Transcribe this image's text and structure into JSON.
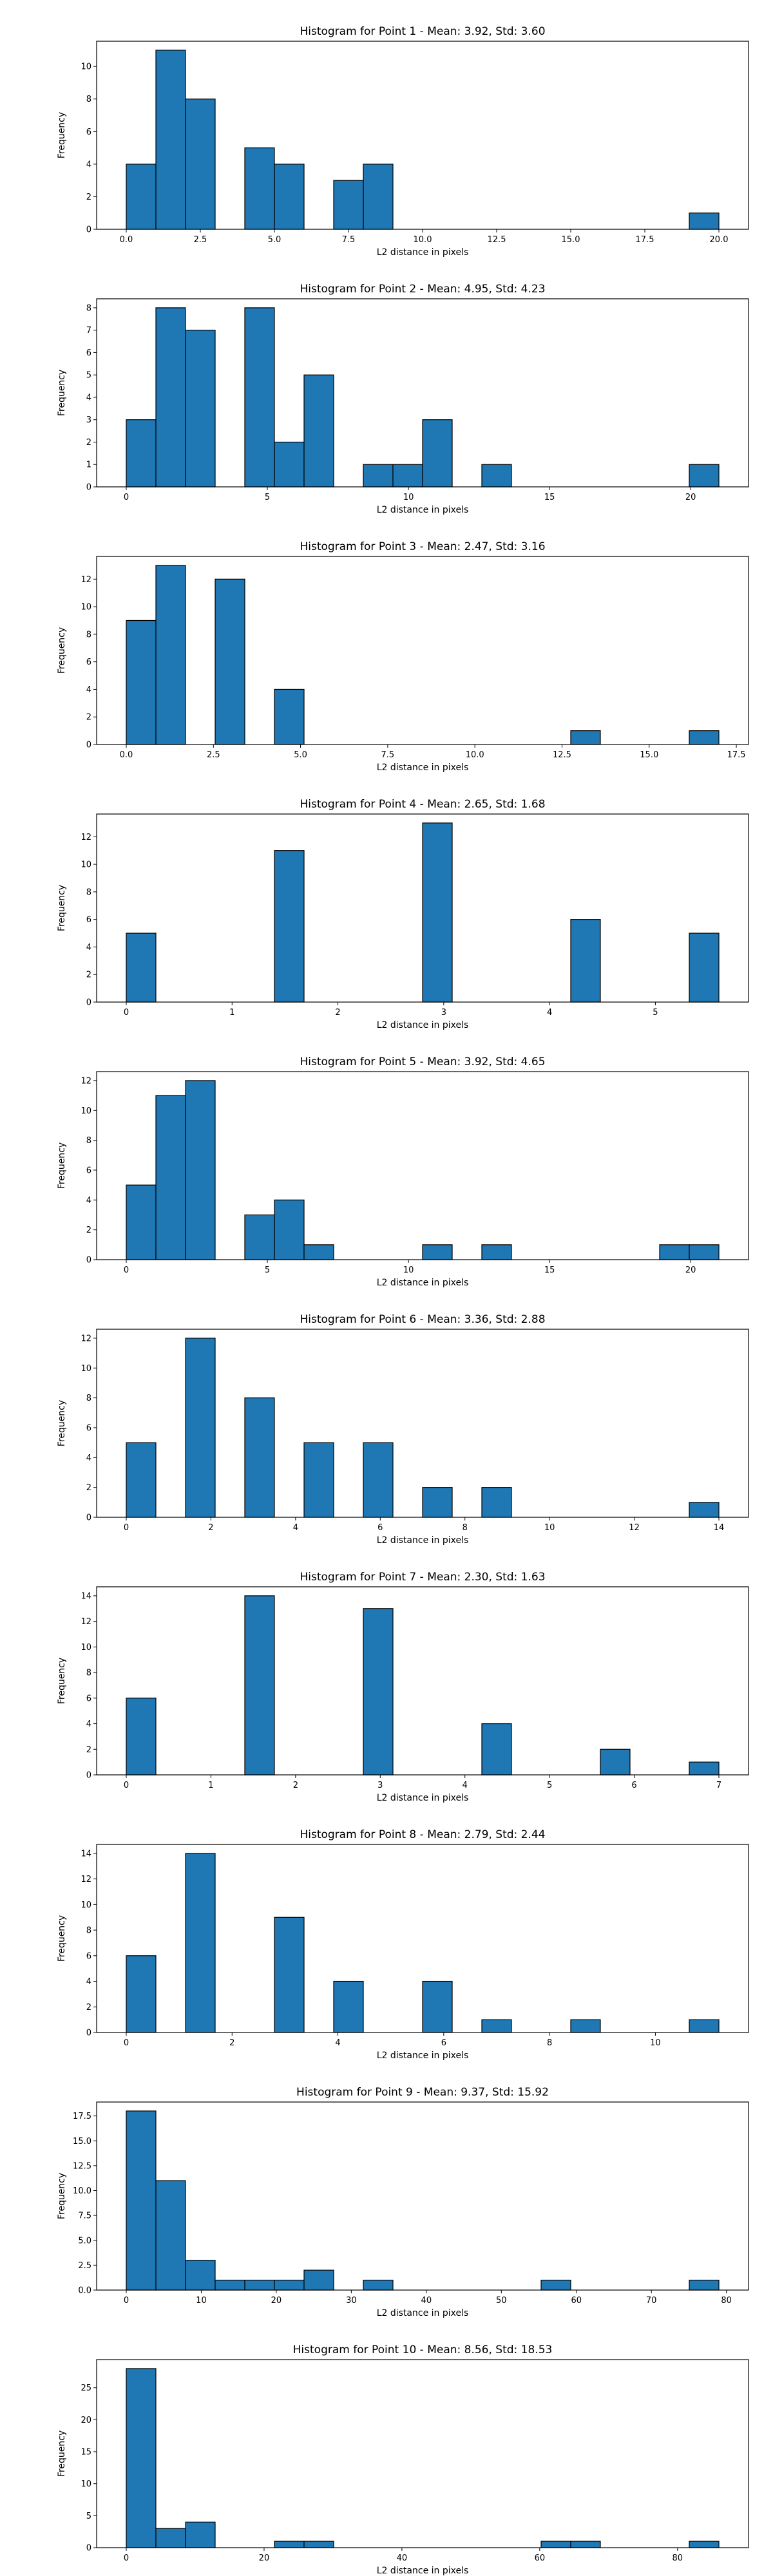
{
  "chart_data": [
    {
      "type": "bar",
      "title": "Histogram for Point 1 - Mean: 3.92, Std: 3.60",
      "xlabel": "L2 distance in pixels",
      "ylabel": "Frequency",
      "xlim": [
        -1.0,
        21.0
      ],
      "ylim": [
        0,
        11.55
      ],
      "xticks": [
        {
          "v": 0.0,
          "label": "0.0"
        },
        {
          "v": 2.5,
          "label": "2.5"
        },
        {
          "v": 5.0,
          "label": "5.0"
        },
        {
          "v": 7.5,
          "label": "7.5"
        },
        {
          "v": 10.0,
          "label": "10.0"
        },
        {
          "v": 12.5,
          "label": "12.5"
        },
        {
          "v": 15.0,
          "label": "15.0"
        },
        {
          "v": 17.5,
          "label": "17.5"
        },
        {
          "v": 20.0,
          "label": "20.0"
        }
      ],
      "yticks": [
        {
          "v": 0,
          "label": "0"
        },
        {
          "v": 2,
          "label": "2"
        },
        {
          "v": 4,
          "label": "4"
        },
        {
          "v": 6,
          "label": "6"
        },
        {
          "v": 8,
          "label": "8"
        },
        {
          "v": 10,
          "label": "10"
        }
      ],
      "bins": [
        {
          "x0": 0.0,
          "x1": 1.0,
          "count": 4
        },
        {
          "x0": 1.0,
          "x1": 2.0,
          "count": 11
        },
        {
          "x0": 2.0,
          "x1": 3.0,
          "count": 8
        },
        {
          "x0": 4.0,
          "x1": 5.0,
          "count": 5
        },
        {
          "x0": 5.0,
          "x1": 6.0,
          "count": 4
        },
        {
          "x0": 7.0,
          "x1": 8.0,
          "count": 3
        },
        {
          "x0": 8.0,
          "x1": 9.0,
          "count": 4
        },
        {
          "x0": 19.0,
          "x1": 20.0,
          "count": 1
        }
      ]
    },
    {
      "type": "bar",
      "title": "Histogram for Point 2 - Mean: 4.95, Std: 4.23",
      "xlabel": "L2 distance in pixels",
      "ylabel": "Frequency",
      "xlim": [
        -1.05,
        22.05
      ],
      "ylim": [
        0,
        8.4
      ],
      "xticks": [
        {
          "v": 0,
          "label": "0"
        },
        {
          "v": 5,
          "label": "5"
        },
        {
          "v": 10,
          "label": "10"
        },
        {
          "v": 15,
          "label": "15"
        },
        {
          "v": 20,
          "label": "20"
        }
      ],
      "yticks": [
        {
          "v": 0,
          "label": "0"
        },
        {
          "v": 1,
          "label": "1"
        },
        {
          "v": 2,
          "label": "2"
        },
        {
          "v": 3,
          "label": "3"
        },
        {
          "v": 4,
          "label": "4"
        },
        {
          "v": 5,
          "label": "5"
        },
        {
          "v": 6,
          "label": "6"
        },
        {
          "v": 7,
          "label": "7"
        },
        {
          "v": 8,
          "label": "8"
        }
      ],
      "bins": [
        {
          "x0": 0.0,
          "x1": 1.05,
          "count": 3
        },
        {
          "x0": 1.05,
          "x1": 2.1,
          "count": 8
        },
        {
          "x0": 2.1,
          "x1": 3.15,
          "count": 7
        },
        {
          "x0": 4.2,
          "x1": 5.25,
          "count": 8
        },
        {
          "x0": 5.25,
          "x1": 6.3,
          "count": 2
        },
        {
          "x0": 6.3,
          "x1": 7.35,
          "count": 5
        },
        {
          "x0": 8.4,
          "x1": 9.45,
          "count": 1
        },
        {
          "x0": 9.45,
          "x1": 10.5,
          "count": 1
        },
        {
          "x0": 10.5,
          "x1": 11.55,
          "count": 3
        },
        {
          "x0": 12.6,
          "x1": 13.65,
          "count": 1
        },
        {
          "x0": 19.95,
          "x1": 21.0,
          "count": 1
        }
      ]
    },
    {
      "type": "bar",
      "title": "Histogram for Point 3 - Mean: 2.47, Std: 3.16",
      "xlabel": "L2 distance in pixels",
      "ylabel": "Frequency",
      "xlim": [
        -0.85,
        17.85
      ],
      "ylim": [
        0,
        13.65
      ],
      "xticks": [
        {
          "v": 0.0,
          "label": "0.0"
        },
        {
          "v": 2.5,
          "label": "2.5"
        },
        {
          "v": 5.0,
          "label": "5.0"
        },
        {
          "v": 7.5,
          "label": "7.5"
        },
        {
          "v": 10.0,
          "label": "10.0"
        },
        {
          "v": 12.5,
          "label": "12.5"
        },
        {
          "v": 15.0,
          "label": "15.0"
        },
        {
          "v": 17.5,
          "label": "17.5"
        }
      ],
      "yticks": [
        {
          "v": 0,
          "label": "0"
        },
        {
          "v": 2,
          "label": "2"
        },
        {
          "v": 4,
          "label": "4"
        },
        {
          "v": 6,
          "label": "6"
        },
        {
          "v": 8,
          "label": "8"
        },
        {
          "v": 10,
          "label": "10"
        },
        {
          "v": 12,
          "label": "12"
        }
      ],
      "bins": [
        {
          "x0": 0.0,
          "x1": 0.85,
          "count": 9
        },
        {
          "x0": 0.85,
          "x1": 1.7,
          "count": 13
        },
        {
          "x0": 2.55,
          "x1": 3.4,
          "count": 12
        },
        {
          "x0": 4.25,
          "x1": 5.1,
          "count": 4
        },
        {
          "x0": 12.75,
          "x1": 13.6,
          "count": 1
        },
        {
          "x0": 16.15,
          "x1": 17.0,
          "count": 1
        }
      ]
    },
    {
      "type": "bar",
      "title": "Histogram for Point 4 - Mean: 2.65, Std: 1.68",
      "xlabel": "L2 distance in pixels",
      "ylabel": "Frequency",
      "xlim": [
        -0.28,
        5.88
      ],
      "ylim": [
        0,
        13.65
      ],
      "xticks": [
        {
          "v": 0,
          "label": "0"
        },
        {
          "v": 1,
          "label": "1"
        },
        {
          "v": 2,
          "label": "2"
        },
        {
          "v": 3,
          "label": "3"
        },
        {
          "v": 4,
          "label": "4"
        },
        {
          "v": 5,
          "label": "5"
        }
      ],
      "yticks": [
        {
          "v": 0,
          "label": "0"
        },
        {
          "v": 2,
          "label": "2"
        },
        {
          "v": 4,
          "label": "4"
        },
        {
          "v": 6,
          "label": "6"
        },
        {
          "v": 8,
          "label": "8"
        },
        {
          "v": 10,
          "label": "10"
        },
        {
          "v": 12,
          "label": "12"
        }
      ],
      "bins": [
        {
          "x0": 0.0,
          "x1": 0.28,
          "count": 5
        },
        {
          "x0": 1.4,
          "x1": 1.68,
          "count": 11
        },
        {
          "x0": 2.8,
          "x1": 3.08,
          "count": 13
        },
        {
          "x0": 4.2,
          "x1": 4.48,
          "count": 6
        },
        {
          "x0": 5.32,
          "x1": 5.6,
          "count": 5
        }
      ]
    },
    {
      "type": "bar",
      "title": "Histogram for Point 5 - Mean: 3.92, Std: 4.65",
      "xlabel": "L2 distance in pixels",
      "ylabel": "Frequency",
      "xlim": [
        -1.05,
        22.05
      ],
      "ylim": [
        0,
        12.6
      ],
      "xticks": [
        {
          "v": 0,
          "label": "0"
        },
        {
          "v": 5,
          "label": "5"
        },
        {
          "v": 10,
          "label": "10"
        },
        {
          "v": 15,
          "label": "15"
        },
        {
          "v": 20,
          "label": "20"
        }
      ],
      "yticks": [
        {
          "v": 0,
          "label": "0"
        },
        {
          "v": 2,
          "label": "2"
        },
        {
          "v": 4,
          "label": "4"
        },
        {
          "v": 6,
          "label": "6"
        },
        {
          "v": 8,
          "label": "8"
        },
        {
          "v": 10,
          "label": "10"
        },
        {
          "v": 12,
          "label": "12"
        }
      ],
      "bins": [
        {
          "x0": 0.0,
          "x1": 1.05,
          "count": 5
        },
        {
          "x0": 1.05,
          "x1": 2.1,
          "count": 11
        },
        {
          "x0": 2.1,
          "x1": 3.15,
          "count": 12
        },
        {
          "x0": 4.2,
          "x1": 5.25,
          "count": 3
        },
        {
          "x0": 5.25,
          "x1": 6.3,
          "count": 4
        },
        {
          "x0": 6.3,
          "x1": 7.35,
          "count": 1
        },
        {
          "x0": 10.5,
          "x1": 11.55,
          "count": 1
        },
        {
          "x0": 12.6,
          "x1": 13.65,
          "count": 1
        },
        {
          "x0": 18.9,
          "x1": 19.95,
          "count": 1
        },
        {
          "x0": 19.95,
          "x1": 21.0,
          "count": 1
        }
      ]
    },
    {
      "type": "bar",
      "title": "Histogram for Point 6 - Mean: 3.36, Std: 2.88",
      "xlabel": "L2 distance in pixels",
      "ylabel": "Frequency",
      "xlim": [
        -0.7,
        14.7
      ],
      "ylim": [
        0,
        12.6
      ],
      "xticks": [
        {
          "v": 0,
          "label": "0"
        },
        {
          "v": 2,
          "label": "2"
        },
        {
          "v": 4,
          "label": "4"
        },
        {
          "v": 6,
          "label": "6"
        },
        {
          "v": 8,
          "label": "8"
        },
        {
          "v": 10,
          "label": "10"
        },
        {
          "v": 12,
          "label": "12"
        },
        {
          "v": 14,
          "label": "14"
        }
      ],
      "yticks": [
        {
          "v": 0,
          "label": "0"
        },
        {
          "v": 2,
          "label": "2"
        },
        {
          "v": 4,
          "label": "4"
        },
        {
          "v": 6,
          "label": "6"
        },
        {
          "v": 8,
          "label": "8"
        },
        {
          "v": 10,
          "label": "10"
        },
        {
          "v": 12,
          "label": "12"
        }
      ],
      "bins": [
        {
          "x0": 0.0,
          "x1": 0.7,
          "count": 5
        },
        {
          "x0": 1.4,
          "x1": 2.1,
          "count": 12
        },
        {
          "x0": 2.8,
          "x1": 3.5,
          "count": 8
        },
        {
          "x0": 4.2,
          "x1": 4.9,
          "count": 5
        },
        {
          "x0": 5.6,
          "x1": 6.3,
          "count": 5
        },
        {
          "x0": 7.0,
          "x1": 7.7,
          "count": 2
        },
        {
          "x0": 8.4,
          "x1": 9.1,
          "count": 2
        },
        {
          "x0": 13.3,
          "x1": 14.0,
          "count": 1
        }
      ]
    },
    {
      "type": "bar",
      "title": "Histogram for Point 7 - Mean: 2.30, Std: 1.63",
      "xlabel": "L2 distance in pixels",
      "ylabel": "Frequency",
      "xlim": [
        -0.35,
        7.35
      ],
      "ylim": [
        0,
        14.7
      ],
      "xticks": [
        {
          "v": 0,
          "label": "0"
        },
        {
          "v": 1,
          "label": "1"
        },
        {
          "v": 2,
          "label": "2"
        },
        {
          "v": 3,
          "label": "3"
        },
        {
          "v": 4,
          "label": "4"
        },
        {
          "v": 5,
          "label": "5"
        },
        {
          "v": 6,
          "label": "6"
        },
        {
          "v": 7,
          "label": "7"
        }
      ],
      "yticks": [
        {
          "v": 0,
          "label": "0"
        },
        {
          "v": 2,
          "label": "2"
        },
        {
          "v": 4,
          "label": "4"
        },
        {
          "v": 6,
          "label": "6"
        },
        {
          "v": 8,
          "label": "8"
        },
        {
          "v": 10,
          "label": "10"
        },
        {
          "v": 12,
          "label": "12"
        },
        {
          "v": 14,
          "label": "14"
        }
      ],
      "bins": [
        {
          "x0": 0.0,
          "x1": 0.35,
          "count": 6
        },
        {
          "x0": 1.4,
          "x1": 1.75,
          "count": 14
        },
        {
          "x0": 2.8,
          "x1": 3.15,
          "count": 13
        },
        {
          "x0": 4.2,
          "x1": 4.55,
          "count": 4
        },
        {
          "x0": 5.6,
          "x1": 5.95,
          "count": 2
        },
        {
          "x0": 6.65,
          "x1": 7.0,
          "count": 1
        }
      ]
    },
    {
      "type": "bar",
      "title": "Histogram for Point 8 - Mean: 2.79, Std: 2.44",
      "xlabel": "L2 distance in pixels",
      "ylabel": "Frequency",
      "xlim": [
        -0.56,
        11.76
      ],
      "ylim": [
        0,
        14.7
      ],
      "xticks": [
        {
          "v": 0,
          "label": "0"
        },
        {
          "v": 2,
          "label": "2"
        },
        {
          "v": 4,
          "label": "4"
        },
        {
          "v": 6,
          "label": "6"
        },
        {
          "v": 8,
          "label": "8"
        },
        {
          "v": 10,
          "label": "10"
        }
      ],
      "yticks": [
        {
          "v": 0,
          "label": "0"
        },
        {
          "v": 2,
          "label": "2"
        },
        {
          "v": 4,
          "label": "4"
        },
        {
          "v": 6,
          "label": "6"
        },
        {
          "v": 8,
          "label": "8"
        },
        {
          "v": 10,
          "label": "10"
        },
        {
          "v": 12,
          "label": "12"
        },
        {
          "v": 14,
          "label": "14"
        }
      ],
      "bins": [
        {
          "x0": 0.0,
          "x1": 0.56,
          "count": 6
        },
        {
          "x0": 1.12,
          "x1": 1.68,
          "count": 14
        },
        {
          "x0": 2.8,
          "x1": 3.36,
          "count": 9
        },
        {
          "x0": 3.92,
          "x1": 4.48,
          "count": 4
        },
        {
          "x0": 5.6,
          "x1": 6.16,
          "count": 4
        },
        {
          "x0": 6.72,
          "x1": 7.28,
          "count": 1
        },
        {
          "x0": 8.4,
          "x1": 8.96,
          "count": 1
        },
        {
          "x0": 10.64,
          "x1": 11.2,
          "count": 1
        }
      ]
    },
    {
      "type": "bar",
      "title": "Histogram for Point 9 - Mean: 9.37, Std: 15.92",
      "xlabel": "L2 distance in pixels",
      "ylabel": "Frequency",
      "xlim": [
        -3.95,
        82.95
      ],
      "ylim": [
        0,
        18.9
      ],
      "xticks": [
        {
          "v": 0,
          "label": "0"
        },
        {
          "v": 10,
          "label": "10"
        },
        {
          "v": 20,
          "label": "20"
        },
        {
          "v": 30,
          "label": "30"
        },
        {
          "v": 40,
          "label": "40"
        },
        {
          "v": 50,
          "label": "50"
        },
        {
          "v": 60,
          "label": "60"
        },
        {
          "v": 70,
          "label": "70"
        },
        {
          "v": 80,
          "label": "80"
        }
      ],
      "yticks": [
        {
          "v": 0,
          "label": "0.0"
        },
        {
          "v": 2.5,
          "label": "2.5"
        },
        {
          "v": 5,
          "label": "5.0"
        },
        {
          "v": 7.5,
          "label": "7.5"
        },
        {
          "v": 10,
          "label": "10.0"
        },
        {
          "v": 12.5,
          "label": "12.5"
        },
        {
          "v": 15,
          "label": "15.0"
        },
        {
          "v": 17.5,
          "label": "17.5"
        }
      ],
      "bins": [
        {
          "x0": 0.0,
          "x1": 3.95,
          "count": 18
        },
        {
          "x0": 3.95,
          "x1": 7.9,
          "count": 11
        },
        {
          "x0": 7.9,
          "x1": 11.85,
          "count": 3
        },
        {
          "x0": 11.85,
          "x1": 15.8,
          "count": 1
        },
        {
          "x0": 15.8,
          "x1": 19.75,
          "count": 1
        },
        {
          "x0": 19.75,
          "x1": 23.7,
          "count": 1
        },
        {
          "x0": 23.7,
          "x1": 27.65,
          "count": 2
        },
        {
          "x0": 31.6,
          "x1": 35.55,
          "count": 1
        },
        {
          "x0": 55.3,
          "x1": 59.25,
          "count": 1
        },
        {
          "x0": 75.05,
          "x1": 79.0,
          "count": 1
        }
      ]
    },
    {
      "type": "bar",
      "title": "Histogram for Point 10 - Mean: 8.56, Std: 18.53",
      "xlabel": "L2 distance in pixels",
      "ylabel": "Frequency",
      "xlim": [
        -4.3,
        90.3
      ],
      "ylim": [
        0,
        29.4
      ],
      "xticks": [
        {
          "v": 0,
          "label": "0"
        },
        {
          "v": 20,
          "label": "20"
        },
        {
          "v": 40,
          "label": "40"
        },
        {
          "v": 60,
          "label": "60"
        },
        {
          "v": 80,
          "label": "80"
        }
      ],
      "yticks": [
        {
          "v": 0,
          "label": "0"
        },
        {
          "v": 5,
          "label": "5"
        },
        {
          "v": 10,
          "label": "10"
        },
        {
          "v": 15,
          "label": "15"
        },
        {
          "v": 20,
          "label": "20"
        },
        {
          "v": 25,
          "label": "25"
        }
      ],
      "bins": [
        {
          "x0": 0.0,
          "x1": 4.3,
          "count": 28
        },
        {
          "x0": 4.3,
          "x1": 8.6,
          "count": 3
        },
        {
          "x0": 8.6,
          "x1": 12.9,
          "count": 4
        },
        {
          "x0": 21.5,
          "x1": 25.8,
          "count": 1
        },
        {
          "x0": 25.8,
          "x1": 30.1,
          "count": 1
        },
        {
          "x0": 60.2,
          "x1": 64.5,
          "count": 1
        },
        {
          "x0": 64.5,
          "x1": 68.8,
          "count": 1
        },
        {
          "x0": 81.7,
          "x1": 86.0,
          "count": 1
        }
      ]
    }
  ]
}
